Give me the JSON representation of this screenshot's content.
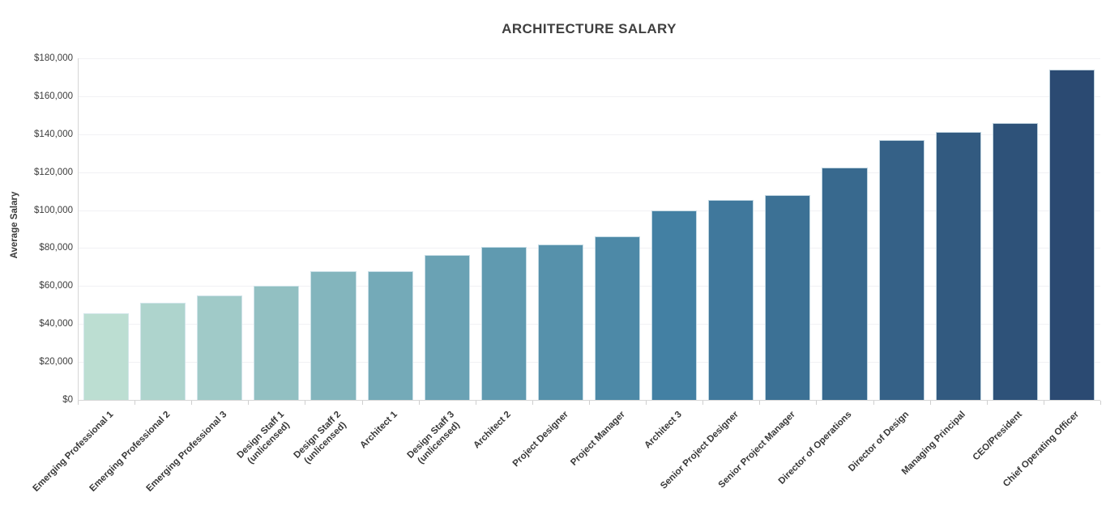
{
  "chart_data": {
    "type": "bar",
    "title": "ARCHITECTURE SALARY",
    "xlabel": "",
    "ylabel": "Average Salary",
    "ylim": [
      0,
      180000
    ],
    "ytick_step": 20000,
    "ytick_labels": [
      "$0",
      "$20,000",
      "$40,000",
      "$60,000",
      "$80,000",
      "$100,000",
      "$120,000",
      "$140,000",
      "$160,000",
      "$180,000"
    ],
    "grid": true,
    "legend": "none",
    "categories": [
      "Emerging Professional 1",
      "Emerging Professional 2",
      "Emerging Professional 3",
      "Design Staff 1\n(unlicensed)",
      "Design Staff 2\n(unlicensed)",
      "Architect 1",
      "Design Staff 3\n(unlicensed)",
      "Architect 2",
      "Project Designer",
      "Project Manager",
      "Architect 3",
      "Senior Project Designer",
      "Senior Project Manager",
      "Director of Operations",
      "Director of Design",
      "Managing Principal",
      "CEO/President",
      "Chief Operating Officer"
    ],
    "values": [
      45500,
      51000,
      55000,
      60000,
      68000,
      68000,
      76500,
      80500,
      82000,
      86000,
      100000,
      105500,
      108000,
      122500,
      137000,
      141000,
      146000,
      174000
    ],
    "bar_colors": [
      "#bcded2",
      "#aed4cd",
      "#a0cac8",
      "#92c0c2",
      "#83b5bd",
      "#74aab8",
      "#6aa2b4",
      "#609ab0",
      "#5691ab",
      "#4d89a7",
      "#4380a3",
      "#40789c",
      "#3c7195",
      "#38698e",
      "#356187",
      "#325a80",
      "#2e5279",
      "#2b4a72"
    ],
    "colors": {
      "title_text": "#3f3f3f",
      "axis_text": "#3d3d3d",
      "gridline": "#f1f1f4",
      "axis_line": "#d6d6d6",
      "background": "#ffffff"
    }
  }
}
